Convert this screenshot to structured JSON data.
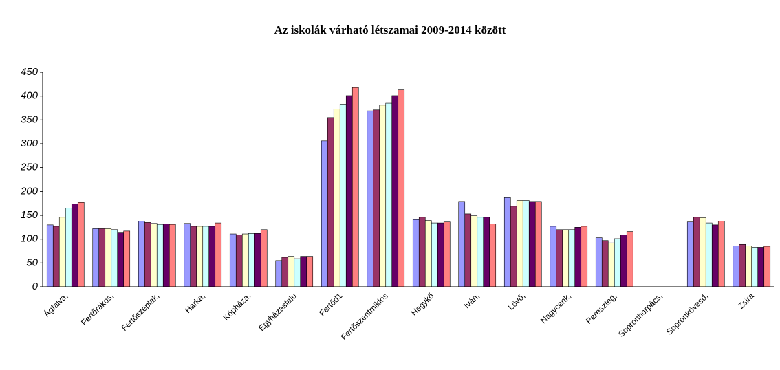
{
  "chart_data": {
    "type": "bar",
    "title": "Az iskolák várható létszamai 2009-2014 között",
    "categories": [
      "Ágfalva,",
      "Fertőrákos,",
      "Fertőszéplak,",
      "Harka,",
      "Kópháza.",
      "Egyházasfalu",
      "Fertőd1",
      "Fertőszentmiklós",
      "Hegykő",
      "Iván,",
      "Lövő,",
      "Nagycenk,",
      "Pereszteg,",
      "Sopronhorpács,",
      "Sopronkövesd,",
      "Zsira"
    ],
    "series": [
      {
        "color": "#9999ff",
        "values": [
          130,
          122,
          138,
          133,
          111,
          55,
          306,
          369,
          141,
          179,
          187,
          127,
          103,
          null,
          136,
          86
        ]
      },
      {
        "color": "#993366",
        "values": [
          127,
          122,
          135,
          127,
          109,
          62,
          355,
          371,
          146,
          153,
          169,
          120,
          97,
          null,
          146,
          89
        ]
      },
      {
        "color": "#ffffcc",
        "values": [
          146,
          122,
          133,
          127,
          111,
          64,
          373,
          381,
          139,
          149,
          181,
          120,
          92,
          null,
          145,
          86
        ]
      },
      {
        "color": "#ccffff",
        "values": [
          165,
          120,
          131,
          127,
          112,
          59,
          383,
          385,
          134,
          146,
          181,
          120,
          101,
          null,
          134,
          83
        ]
      },
      {
        "color": "#660066",
        "values": [
          174,
          113,
          132,
          127,
          112,
          64,
          401,
          401,
          134,
          146,
          179,
          125,
          109,
          null,
          130,
          83
        ]
      },
      {
        "color": "#ff8080",
        "values": [
          177,
          117,
          131,
          134,
          120,
          64,
          418,
          413,
          136,
          132,
          179,
          127,
          116,
          null,
          138,
          85
        ]
      }
    ],
    "ylim": [
      0,
      450
    ],
    "yticks": [
      0,
      50,
      100,
      150,
      200,
      250,
      300,
      350,
      400,
      450
    ]
  }
}
